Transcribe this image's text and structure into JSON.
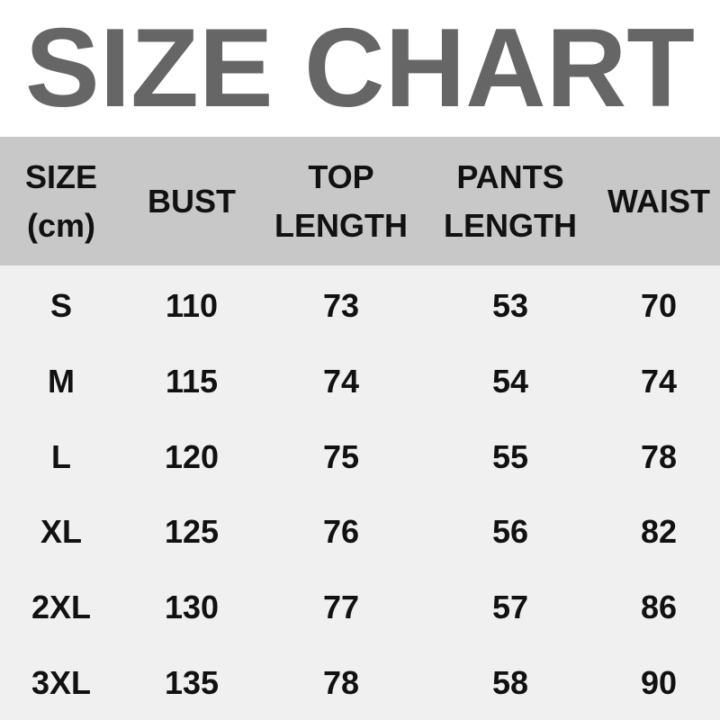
{
  "title": "SIZE CHART",
  "colors": {
    "title": "#666666",
    "header_bg": "#c8c8c8",
    "body_bg": "#f0f0f0",
    "text": "#111111"
  },
  "headers": [
    [
      "SIZE",
      "(cm)"
    ],
    [
      "BUST"
    ],
    [
      "TOP",
      "LENGTH"
    ],
    [
      "PANTS",
      "LENGTH"
    ],
    [
      "WAIST"
    ]
  ],
  "rows": [
    [
      "S",
      "110",
      "73",
      "53",
      "70"
    ],
    [
      "M",
      "115",
      "74",
      "54",
      "74"
    ],
    [
      "L",
      "120",
      "75",
      "55",
      "78"
    ],
    [
      "XL",
      "125",
      "76",
      "56",
      "82"
    ],
    [
      "2XL",
      "130",
      "77",
      "57",
      "86"
    ],
    [
      "3XL",
      "135",
      "78",
      "58",
      "90"
    ]
  ]
}
